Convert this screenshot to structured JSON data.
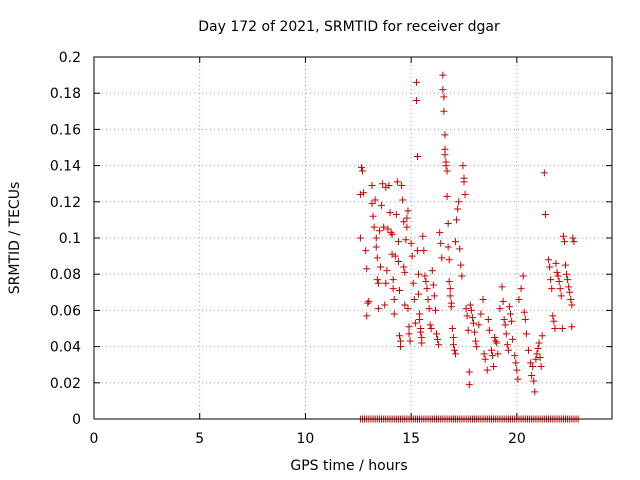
{
  "chart_data": {
    "type": "scatter",
    "title": "Day 172 of 2021, SRMTID for receiver dgar",
    "xlabel": "GPS time / hours",
    "ylabel": "SRMTID / TECUs",
    "xlim": [
      0,
      24.5
    ],
    "ylim": [
      0,
      0.2
    ],
    "xticks": [
      0,
      5,
      10,
      15,
      20
    ],
    "yticks": [
      0,
      0.02,
      0.04,
      0.06,
      0.08,
      0.1,
      0.12,
      0.14,
      0.16,
      0.18,
      0.2
    ],
    "xtick_labels": [
      "0",
      "5",
      "10",
      "15",
      "20"
    ],
    "ytick_labels": [
      "0",
      "0.02",
      "0.04",
      "0.06",
      "0.08",
      "0.1",
      "0.12",
      "0.14",
      "0.16",
      "0.18",
      "0.2"
    ],
    "grid": true,
    "marker": "+",
    "colors": {
      "series": "#cc0000",
      "grid": "#a0a0a0",
      "axis": "#000000"
    },
    "series": [
      {
        "name": "SRMTID",
        "points": [
          [
            12.6,
            0.1
          ],
          [
            12.6,
            0.124
          ],
          [
            12.65,
            0.139
          ],
          [
            12.7,
            0.137
          ],
          [
            12.75,
            0.125
          ],
          [
            12.85,
            0.093
          ],
          [
            12.9,
            0.083
          ],
          [
            12.95,
            0.064
          ],
          [
            12.9,
            0.057
          ],
          [
            13.0,
            0.065
          ],
          [
            13.15,
            0.129
          ],
          [
            13.15,
            0.119
          ],
          [
            13.2,
            0.112
          ],
          [
            13.25,
            0.106
          ],
          [
            13.3,
            0.121
          ],
          [
            13.35,
            0.1
          ],
          [
            13.35,
            0.095
          ],
          [
            13.4,
            0.089
          ],
          [
            13.4,
            0.077
          ],
          [
            13.45,
            0.075
          ],
          [
            13.45,
            0.061
          ],
          [
            13.5,
            0.104
          ],
          [
            13.55,
            0.084
          ],
          [
            13.6,
            0.118
          ],
          [
            13.65,
            0.13
          ],
          [
            13.7,
            0.106
          ],
          [
            13.75,
            0.063
          ],
          [
            13.8,
            0.128
          ],
          [
            13.8,
            0.075
          ],
          [
            13.85,
            0.082
          ],
          [
            13.9,
            0.105
          ],
          [
            13.95,
            0.129
          ],
          [
            14.0,
            0.114
          ],
          [
            14.05,
            0.103
          ],
          [
            14.1,
            0.102
          ],
          [
            14.1,
            0.091
          ],
          [
            14.15,
            0.077
          ],
          [
            14.15,
            0.072
          ],
          [
            14.2,
            0.066
          ],
          [
            14.2,
            0.058
          ],
          [
            14.25,
            0.09
          ],
          [
            14.3,
            0.113
          ],
          [
            14.35,
            0.131
          ],
          [
            14.4,
            0.098
          ],
          [
            14.4,
            0.087
          ],
          [
            14.45,
            0.071
          ],
          [
            14.45,
            0.046
          ],
          [
            14.5,
            0.043
          ],
          [
            14.5,
            0.04
          ],
          [
            14.55,
            0.129
          ],
          [
            14.6,
            0.121
          ],
          [
            14.65,
            0.109
          ],
          [
            14.65,
            0.084
          ],
          [
            14.7,
            0.081
          ],
          [
            14.7,
            0.063
          ],
          [
            14.75,
            0.099
          ],
          [
            14.8,
            0.106
          ],
          [
            14.8,
            0.111
          ],
          [
            14.85,
            0.115
          ],
          [
            14.85,
            0.061
          ],
          [
            14.9,
            0.051
          ],
          [
            14.9,
            0.047
          ],
          [
            14.95,
            0.043
          ],
          [
            15.0,
            0.097
          ],
          [
            15.05,
            0.09
          ],
          [
            15.1,
            0.075
          ],
          [
            15.15,
            0.066
          ],
          [
            15.2,
            0.053
          ],
          [
            15.25,
            0.186
          ],
          [
            15.25,
            0.176
          ],
          [
            15.3,
            0.145
          ],
          [
            15.3,
            0.093
          ],
          [
            15.35,
            0.08
          ],
          [
            15.35,
            0.069
          ],
          [
            15.4,
            0.058
          ],
          [
            15.4,
            0.055
          ],
          [
            15.45,
            0.05
          ],
          [
            15.45,
            0.048
          ],
          [
            15.5,
            0.045
          ],
          [
            15.5,
            0.042
          ],
          [
            15.55,
            0.101
          ],
          [
            15.6,
            0.093
          ],
          [
            15.65,
            0.079
          ],
          [
            15.7,
            0.076
          ],
          [
            15.75,
            0.072
          ],
          [
            15.8,
            0.066
          ],
          [
            15.85,
            0.061
          ],
          [
            15.9,
            0.052
          ],
          [
            15.95,
            0.05
          ],
          [
            16.0,
            0.082
          ],
          [
            16.05,
            0.074
          ],
          [
            16.1,
            0.068
          ],
          [
            16.15,
            0.06
          ],
          [
            16.2,
            0.047
          ],
          [
            16.25,
            0.044
          ],
          [
            16.3,
            0.041
          ],
          [
            16.35,
            0.103
          ],
          [
            16.4,
            0.097
          ],
          [
            16.45,
            0.089
          ],
          [
            16.5,
            0.19
          ],
          [
            16.5,
            0.182
          ],
          [
            16.55,
            0.178
          ],
          [
            16.55,
            0.17
          ],
          [
            16.6,
            0.157
          ],
          [
            16.6,
            0.149
          ],
          [
            16.6,
            0.146
          ],
          [
            16.65,
            0.142
          ],
          [
            16.65,
            0.14
          ],
          [
            16.7,
            0.137
          ],
          [
            16.7,
            0.123
          ],
          [
            16.75,
            0.108
          ],
          [
            16.75,
            0.095
          ],
          [
            16.8,
            0.088
          ],
          [
            16.8,
            0.076
          ],
          [
            16.85,
            0.072
          ],
          [
            16.85,
            0.068
          ],
          [
            16.9,
            0.064
          ],
          [
            16.9,
            0.062
          ],
          [
            16.95,
            0.05
          ],
          [
            17.0,
            0.045
          ],
          [
            17.0,
            0.041
          ],
          [
            17.05,
            0.038
          ],
          [
            17.1,
            0.036
          ],
          [
            17.1,
            0.098
          ],
          [
            17.15,
            0.11
          ],
          [
            17.2,
            0.116
          ],
          [
            17.25,
            0.12
          ],
          [
            17.3,
            0.094
          ],
          [
            17.35,
            0.085
          ],
          [
            17.4,
            0.079
          ],
          [
            17.45,
            0.14
          ],
          [
            17.5,
            0.133
          ],
          [
            17.5,
            0.131
          ],
          [
            17.55,
            0.124
          ],
          [
            17.6,
            0.061
          ],
          [
            17.65,
            0.057
          ],
          [
            17.7,
            0.049
          ],
          [
            17.75,
            0.026
          ],
          [
            17.75,
            0.019
          ],
          [
            17.8,
            0.063
          ],
          [
            17.85,
            0.06
          ],
          [
            17.9,
            0.056
          ],
          [
            17.95,
            0.053
          ],
          [
            18.0,
            0.048
          ],
          [
            18.05,
            0.043
          ],
          [
            18.1,
            0.04
          ],
          [
            18.2,
            0.052
          ],
          [
            18.3,
            0.058
          ],
          [
            18.4,
            0.066
          ],
          [
            18.45,
            0.036
          ],
          [
            18.5,
            0.033
          ],
          [
            18.6,
            0.027
          ],
          [
            18.65,
            0.055
          ],
          [
            18.7,
            0.049
          ],
          [
            18.8,
            0.038
          ],
          [
            18.85,
            0.035
          ],
          [
            18.9,
            0.029
          ],
          [
            18.95,
            0.045
          ],
          [
            19.0,
            0.043
          ],
          [
            19.05,
            0.042
          ],
          [
            19.1,
            0.036
          ],
          [
            19.2,
            0.061
          ],
          [
            19.3,
            0.073
          ],
          [
            19.35,
            0.065
          ],
          [
            19.4,
            0.055
          ],
          [
            19.45,
            0.052
          ],
          [
            19.5,
            0.047
          ],
          [
            19.55,
            0.041
          ],
          [
            19.6,
            0.038
          ],
          [
            19.65,
            0.062
          ],
          [
            19.7,
            0.058
          ],
          [
            19.75,
            0.054
          ],
          [
            19.8,
            0.044
          ],
          [
            19.9,
            0.035
          ],
          [
            19.95,
            0.031
          ],
          [
            20.0,
            0.027
          ],
          [
            20.05,
            0.022
          ],
          [
            20.1,
            0.066
          ],
          [
            20.2,
            0.072
          ],
          [
            20.3,
            0.079
          ],
          [
            20.35,
            0.059
          ],
          [
            20.4,
            0.055
          ],
          [
            20.45,
            0.047
          ],
          [
            20.55,
            0.038
          ],
          [
            20.65,
            0.031
          ],
          [
            20.7,
            0.024
          ],
          [
            20.75,
            0.029
          ],
          [
            20.8,
            0.021
          ],
          [
            20.85,
            0.015
          ],
          [
            20.9,
            0.033
          ],
          [
            20.95,
            0.036
          ],
          [
            21.0,
            0.039
          ],
          [
            21.05,
            0.042
          ],
          [
            21.1,
            0.034
          ],
          [
            21.15,
            0.029
          ],
          [
            21.2,
            0.046
          ],
          [
            21.3,
            0.136
          ],
          [
            21.35,
            0.113
          ],
          [
            21.5,
            0.088
          ],
          [
            21.55,
            0.084
          ],
          [
            21.6,
            0.077
          ],
          [
            21.65,
            0.072
          ],
          [
            21.7,
            0.057
          ],
          [
            21.75,
            0.054
          ],
          [
            21.8,
            0.05
          ],
          [
            21.85,
            0.086
          ],
          [
            21.9,
            0.081
          ],
          [
            21.95,
            0.079
          ],
          [
            22.0,
            0.076
          ],
          [
            22.05,
            0.072
          ],
          [
            22.1,
            0.068
          ],
          [
            22.15,
            0.05
          ],
          [
            22.2,
            0.101
          ],
          [
            22.25,
            0.098
          ],
          [
            22.3,
            0.085
          ],
          [
            22.35,
            0.08
          ],
          [
            22.4,
            0.077
          ],
          [
            22.45,
            0.073
          ],
          [
            22.5,
            0.07
          ],
          [
            22.55,
            0.066
          ],
          [
            22.6,
            0.063
          ],
          [
            22.6,
            0.051
          ],
          [
            22.65,
            0.1
          ],
          [
            22.7,
            0.098
          ]
        ],
        "zero_run": {
          "y": 0,
          "x_start": 12.6,
          "x_end": 22.9,
          "x_step": 0.1
        }
      }
    ]
  }
}
